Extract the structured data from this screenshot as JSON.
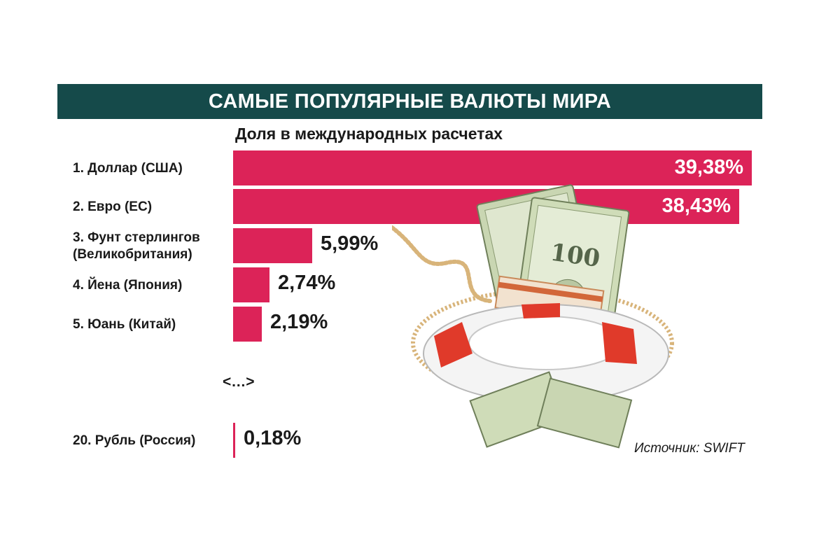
{
  "chart_data": {
    "type": "bar",
    "orientation": "horizontal",
    "title": "САМЫЕ ПОПУЛЯРНЫЕ ВАЛЮТЫ МИРА",
    "subtitle": "Доля в международных расчетах",
    "categories": [
      "1. Доллар (США)",
      "2. Евро (ЕС)",
      "3. Фунт стерлингов\n(Великобритания)",
      "4. Йена (Япония)",
      "5. Юань (Китай)",
      "20. Рубль (Россия)"
    ],
    "values": [
      39.38,
      38.43,
      5.99,
      2.74,
      2.19,
      0.18
    ],
    "value_labels": [
      "39,38%",
      "38,43%",
      "5,99%",
      "2,74%",
      "2,19%",
      "0,18%"
    ],
    "gap_marker": "<…>",
    "source": "Источник: SWIFT",
    "xlim": [
      0,
      39.38
    ]
  },
  "colors": {
    "title_bar": "#154a4a",
    "bar": "#dc2358",
    "text": "#1a1a1a"
  },
  "illustration": {
    "icon": "money-lifebuoy-icon",
    "banknote_denomination": "100"
  }
}
